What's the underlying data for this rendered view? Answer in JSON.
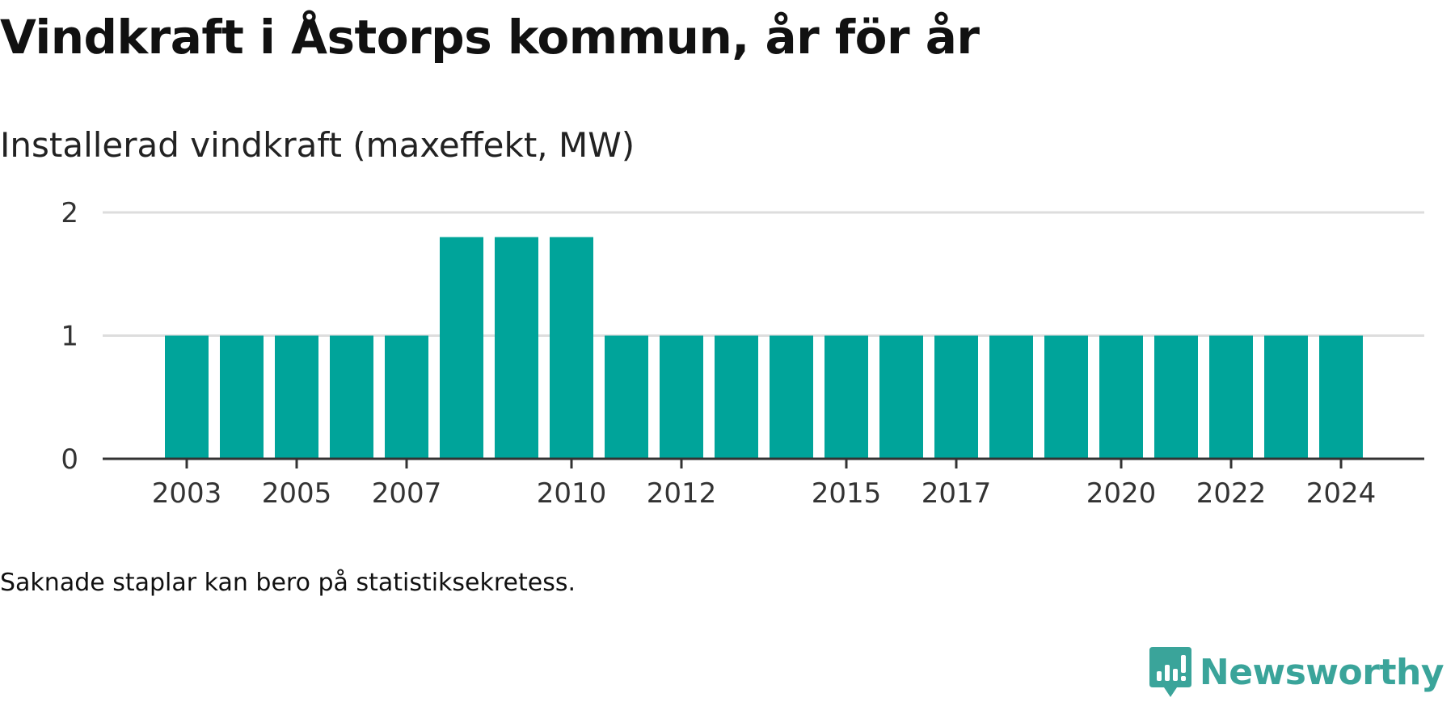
{
  "title": "Vindkraft i Åstorps kommun, år för år",
  "subtitle": "Installerad vindkraft (maxeffekt, MW)",
  "footnote": "Saknade staplar kan bero på statistiksekretess.",
  "brand": {
    "name": "Newsworthy",
    "icon": "newsworthy-logo-icon"
  },
  "colors": {
    "bar": "#00a49a",
    "grid": "#dddddd",
    "axis": "#333333",
    "brand": "#3aa49a"
  },
  "chart_data": {
    "type": "bar",
    "x": [
      2003,
      2004,
      2005,
      2006,
      2007,
      2008,
      2009,
      2010,
      2011,
      2012,
      2013,
      2014,
      2015,
      2016,
      2017,
      2018,
      2019,
      2020,
      2021,
      2022,
      2023,
      2024
    ],
    "values": [
      1,
      1,
      1,
      1,
      1,
      1.8,
      1.8,
      1.8,
      1,
      1,
      1,
      1,
      1,
      1,
      1,
      1,
      1,
      1,
      1,
      1,
      1,
      1
    ],
    "x_tick_labels": [
      "2003",
      "2005",
      "2007",
      "2010",
      "2012",
      "2015",
      "2017",
      "2020",
      "2022",
      "2024"
    ],
    "y_ticks": [
      0,
      1,
      2
    ],
    "ylim": [
      0,
      2
    ],
    "ylabel": "Installerad vindkraft (maxeffekt, MW)",
    "xlabel": "",
    "grid": true,
    "legend": "none"
  }
}
